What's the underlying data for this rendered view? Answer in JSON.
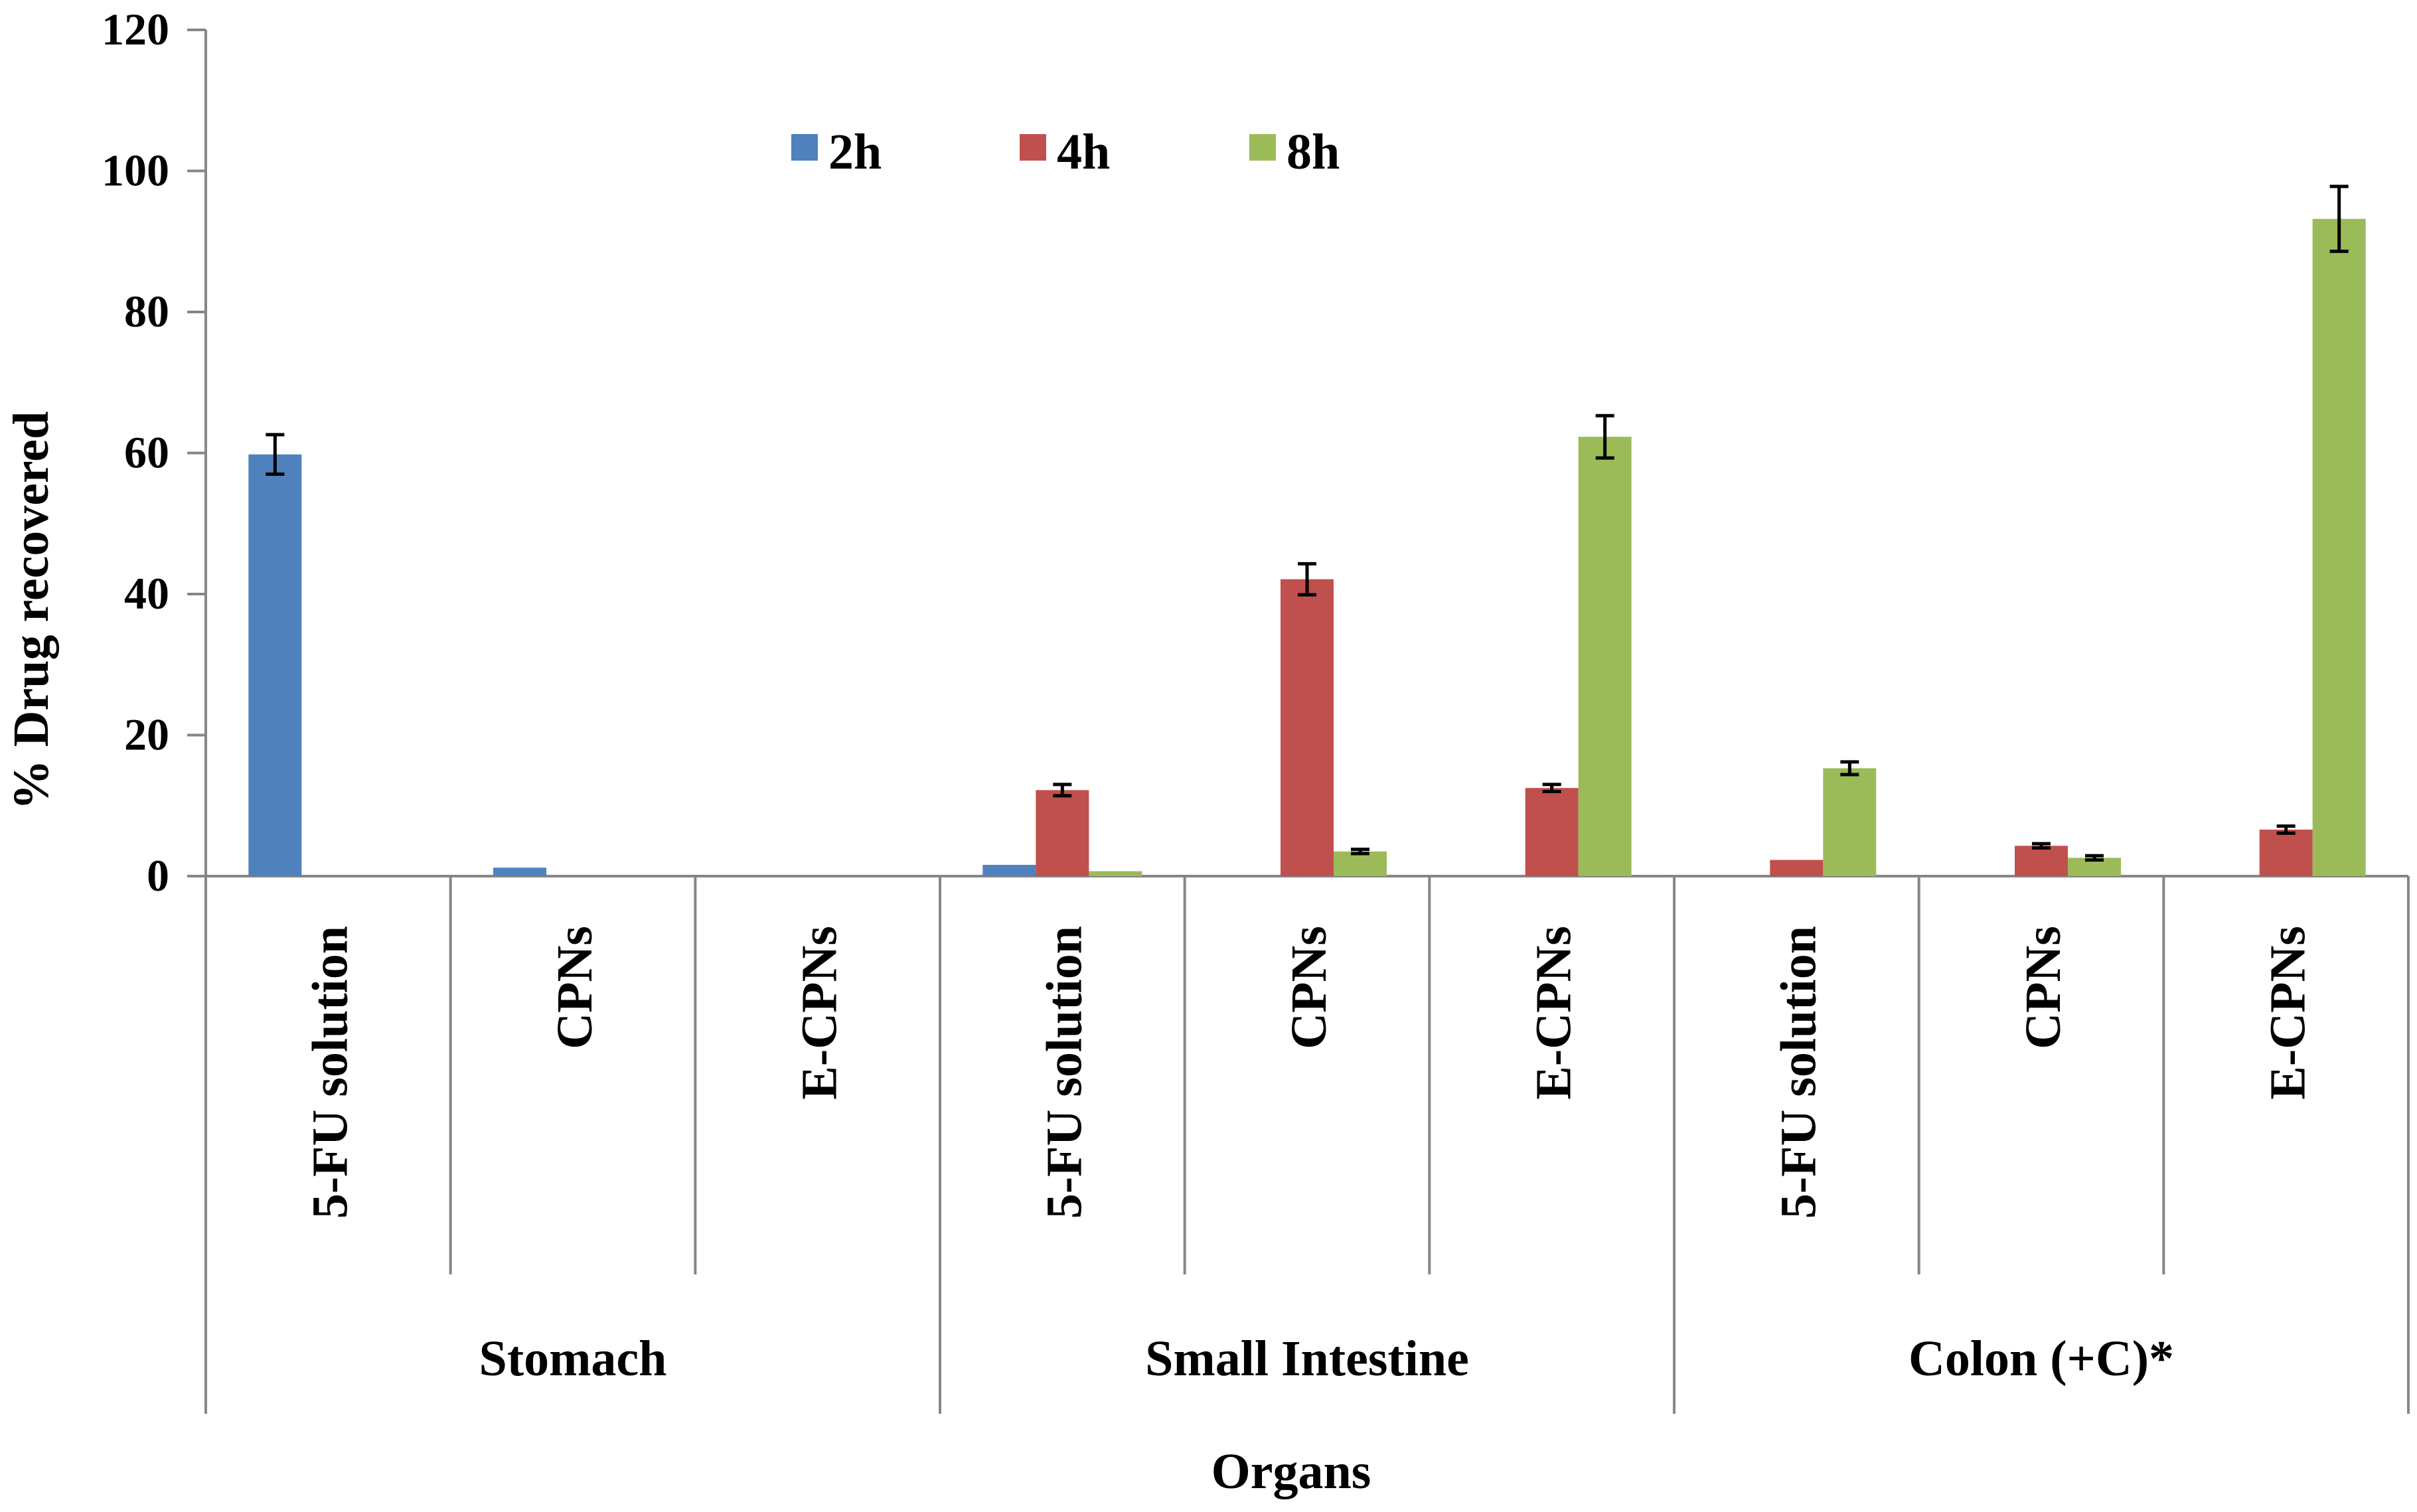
{
  "chart_data": {
    "type": "bar",
    "title": "",
    "ylabel": "% Drug  recovered",
    "xlabel": "Organs",
    "ylim": [
      0,
      120
    ],
    "yticks": [
      "0",
      "20",
      "40",
      "60",
      "80",
      "100",
      "120"
    ],
    "legend_position": "top-center",
    "groups": [
      "Stomach",
      "Small Intestine",
      "Colon (+C)*"
    ],
    "categories": [
      "5-FU solution",
      "CPNs",
      "E-CPNs",
      "5-FU solution",
      "CPNs",
      "E-CPNs",
      "5-FU solution",
      "CPNs",
      "E-CPNs"
    ],
    "series": [
      {
        "name": "2h",
        "color": "#4F81BD",
        "values": [
          59.8,
          1.2,
          0,
          1.6,
          0,
          0,
          0,
          0,
          0
        ],
        "errors": [
          2.8,
          0,
          0,
          0,
          0,
          0,
          0,
          0,
          0
        ]
      },
      {
        "name": "4h",
        "color": "#C0504D",
        "values": [
          0,
          0,
          0,
          12.2,
          42.1,
          12.5,
          2.3,
          4.3,
          6.6
        ],
        "errors": [
          0,
          0,
          0,
          0.8,
          2.2,
          0.5,
          0,
          0.3,
          0.5
        ]
      },
      {
        "name": "8h",
        "color": "#9BBB59",
        "values": [
          0,
          0,
          0,
          0.7,
          3.5,
          62.3,
          15.3,
          2.6,
          93.2
        ],
        "errors": [
          0,
          0,
          0,
          0,
          0.3,
          3.0,
          0.9,
          0.3,
          4.6
        ]
      }
    ]
  }
}
